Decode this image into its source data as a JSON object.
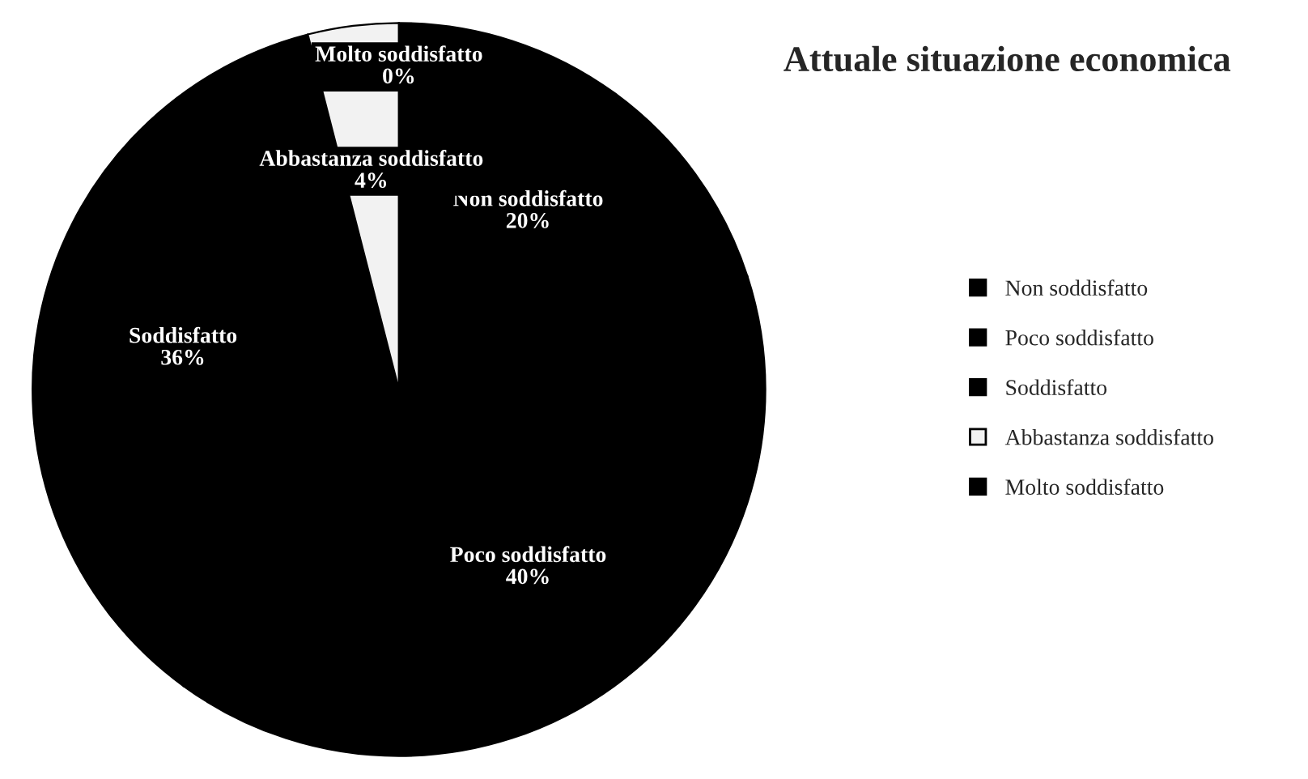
{
  "chart_data": {
    "type": "pie",
    "title": "Attuale situazione economica",
    "categories": [
      "Non soddisfatto",
      "Poco soddisfatto",
      "Soddisfatto",
      "Abbastanza soddisfatto",
      "Molto soddisfatto"
    ],
    "values": [
      20,
      40,
      36,
      4,
      0
    ],
    "colors": [
      "#000000",
      "#000000",
      "#000000",
      "#f2f2f2",
      "#000000"
    ],
    "value_labels": [
      "20%",
      "40%",
      "36%",
      "4%",
      "0%"
    ],
    "legend": "right"
  }
}
